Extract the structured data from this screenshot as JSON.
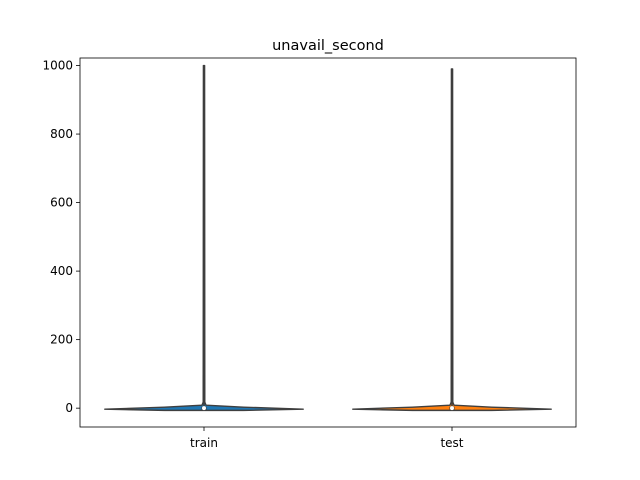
{
  "chart_data": {
    "type": "violin",
    "title": "unavail_second",
    "xlabel": "",
    "ylabel": "",
    "categories": [
      "train",
      "test"
    ],
    "ylim": [
      -55,
      1022
    ],
    "yticks": [
      0,
      200,
      400,
      600,
      800,
      1000
    ],
    "ytick_labels": [
      "0",
      "200",
      "400",
      "600",
      "800",
      "1000"
    ],
    "grid": false,
    "series": [
      {
        "category": "train",
        "color": "#1f77b4",
        "min": -3,
        "max": 1000,
        "q1": 0,
        "median": 0,
        "q3": 0,
        "whisker_low": -3,
        "whisker_high": 1000,
        "density_peak_y": 0,
        "density_halfwidth_fraction": 0.8
      },
      {
        "category": "test",
        "color": "#ff7f0e",
        "min": -3,
        "max": 990,
        "q1": 0,
        "median": 0,
        "q3": 0,
        "whisker_low": -3,
        "whisker_high": 990,
        "density_peak_y": 0,
        "density_halfwidth_fraction": 0.8
      }
    ]
  }
}
